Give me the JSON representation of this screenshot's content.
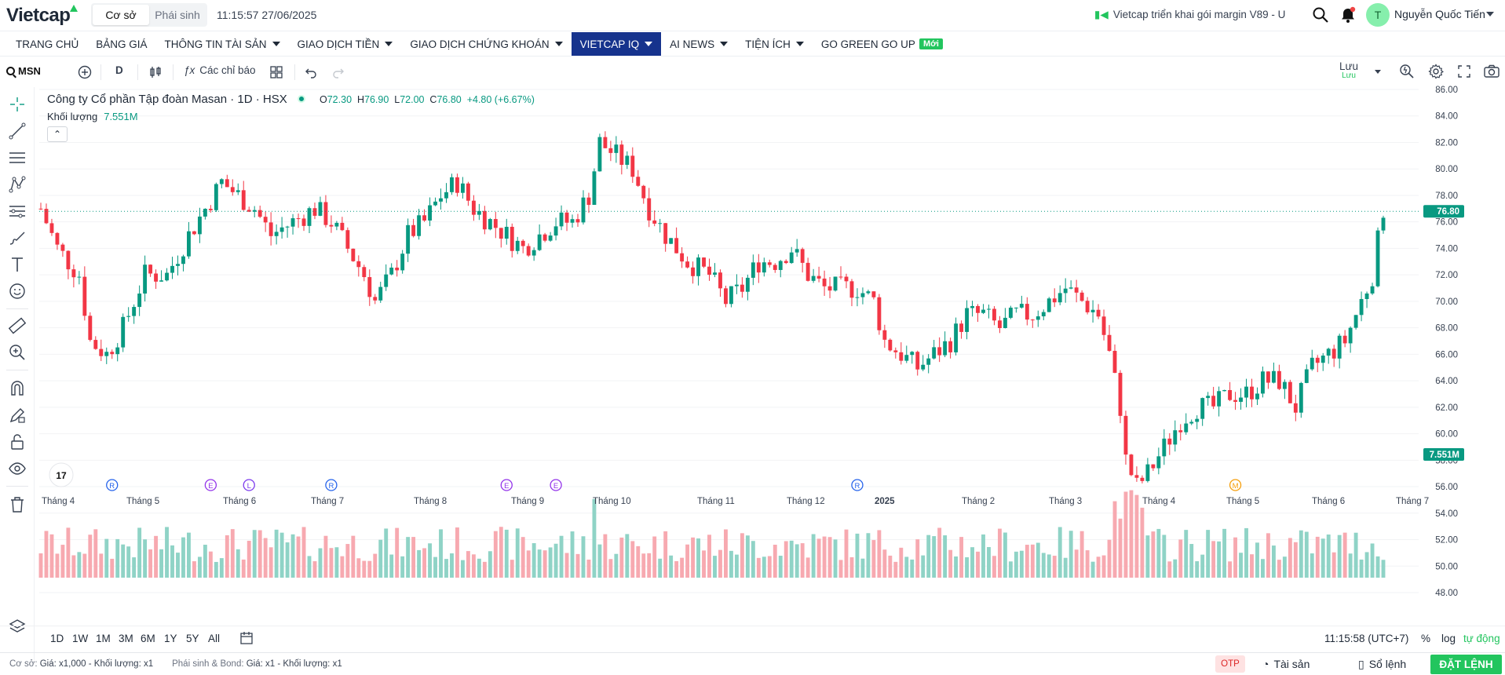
{
  "header": {
    "logo": "Vietcap",
    "segments": [
      "Cơ sở",
      "Phái sinh"
    ],
    "active_segment": 0,
    "clock": "11:15:57 27/06/2025",
    "ticker": "Vietcap triển khai gói margin V89 - U",
    "user_initial": "T",
    "user_name": "Nguyễn Quốc Tiến"
  },
  "nav": [
    {
      "label": "TRANG CHỦ",
      "caret": false
    },
    {
      "label": "BẢNG GIÁ",
      "caret": false
    },
    {
      "label": "THÔNG TIN TÀI SẢN",
      "caret": true
    },
    {
      "label": "GIAO DỊCH TIỀN",
      "caret": true
    },
    {
      "label": "GIAO DỊCH CHỨNG KHOÁN",
      "caret": true
    },
    {
      "label": "VIETCAP IQ",
      "caret": true,
      "active": true
    },
    {
      "label": "AI NEWS",
      "caret": true
    },
    {
      "label": "TIỆN ÍCH",
      "caret": true
    },
    {
      "label": "GO GREEN GO UP",
      "caret": false,
      "badge": "Mới"
    }
  ],
  "toolbar": {
    "symbol": "MSN",
    "interval": "D",
    "indicators": "Các chỉ báo",
    "save": "Lưu",
    "save_sub": "Lưu"
  },
  "legend": {
    "title": "Công ty Cổ phần Tập đoàn Masan · 1D · HSX",
    "open_label": "O",
    "open": "72.30",
    "high_label": "H",
    "high": "76.90",
    "low_label": "L",
    "low": "72.00",
    "close_label": "C",
    "close": "76.80",
    "change": "+4.80 (+6.67%)",
    "volume_label": "Khối lượng",
    "volume": "7.551M"
  },
  "bottom": {
    "ranges": [
      "1D",
      "1W",
      "1M",
      "3M",
      "6M",
      "1Y",
      "5Y",
      "All"
    ],
    "time": "11:15:58 (UTC+7)",
    "pct": "%",
    "log": "log",
    "auto": "tự động"
  },
  "footer": {
    "coso": "Cơ sở:",
    "coso_val": "Giá: x1,000 - Khối lượng: x1",
    "ps": "Phái sinh & Bond:",
    "ps_val": "Giá: x1 - Khối lượng: x1",
    "otp": "OTP",
    "taisan": "Tài sản",
    "solenh": "Sổ lệnh",
    "datlenh": "ĐẶT LỆNH"
  },
  "colors": {
    "up": "#089981",
    "down": "#f23645",
    "vol_up": "#8fd3c6",
    "vol_down": "#f7a9b0",
    "brand_nav": "#16338d",
    "accent": "#22c55e"
  },
  "chart_data": {
    "type": "candlestick",
    "title": "Công ty Cổ phần Tập đoàn Masan · 1D · HSX",
    "y_ticks": [
      "86.00",
      "84.00",
      "82.00",
      "80.00",
      "78.00",
      "76.00",
      "74.00",
      "72.00",
      "70.00",
      "68.00",
      "66.00",
      "64.00",
      "62.00",
      "60.00",
      "58.00",
      "56.00",
      "54.00",
      "52.00",
      "50.00",
      "48.00"
    ],
    "ylim": [
      47.5,
      86.5
    ],
    "last_price": "76.80",
    "last_volume": "7.551M",
    "x_labels": [
      "Tháng 4",
      "Tháng 5",
      "Tháng 6",
      "Tháng 7",
      "Tháng 8",
      "Tháng 9",
      "Tháng 10",
      "Tháng 11",
      "Tháng 12",
      "2025",
      "Tháng 2",
      "Tháng 3",
      "Tháng 4",
      "Tháng 5",
      "Tháng 6",
      "Tháng 7"
    ],
    "trend_points": [
      [
        0,
        77
      ],
      [
        3,
        74
      ],
      [
        7,
        72
      ],
      [
        9,
        67
      ],
      [
        12,
        66
      ],
      [
        15,
        68
      ],
      [
        19,
        72
      ],
      [
        23,
        72
      ],
      [
        27,
        75
      ],
      [
        30,
        77
      ],
      [
        33,
        79
      ],
      [
        36,
        78
      ],
      [
        39,
        77
      ],
      [
        42,
        75
      ],
      [
        46,
        76
      ],
      [
        50,
        77
      ],
      [
        53,
        76
      ],
      [
        56,
        74
      ],
      [
        59,
        72
      ],
      [
        61,
        70
      ],
      [
        64,
        72
      ],
      [
        67,
        75
      ],
      [
        70,
        76
      ],
      [
        73,
        78
      ],
      [
        76,
        79
      ],
      [
        79,
        77
      ],
      [
        82,
        76
      ],
      [
        85,
        75
      ],
      [
        88,
        74
      ],
      [
        91,
        75
      ],
      [
        94,
        76
      ],
      [
        97,
        76
      ],
      [
        100,
        78
      ],
      [
        102,
        82
      ],
      [
        105,
        81
      ],
      [
        108,
        80
      ],
      [
        111,
        77
      ],
      [
        114,
        75
      ],
      [
        118,
        73
      ],
      [
        122,
        72
      ],
      [
        125,
        70
      ],
      [
        128,
        71
      ],
      [
        131,
        73
      ],
      [
        134,
        73
      ],
      [
        137,
        74
      ],
      [
        140,
        72
      ],
      [
        143,
        71
      ],
      [
        146,
        71
      ],
      [
        149,
        71
      ],
      [
        152,
        70
      ],
      [
        154,
        67
      ],
      [
        157,
        66
      ],
      [
        160,
        65
      ],
      [
        163,
        66
      ],
      [
        166,
        67
      ],
      [
        169,
        69
      ],
      [
        172,
        69
      ],
      [
        175,
        68
      ],
      [
        178,
        69
      ],
      [
        181,
        69
      ],
      [
        184,
        70
      ],
      [
        187,
        71
      ],
      [
        190,
        70
      ],
      [
        193,
        69
      ],
      [
        195,
        66
      ],
      [
        197,
        62
      ],
      [
        198,
        58
      ],
      [
        200,
        56
      ],
      [
        202,
        57
      ],
      [
        205,
        59
      ],
      [
        208,
        61
      ],
      [
        211,
        62
      ],
      [
        214,
        62
      ],
      [
        217,
        63
      ],
      [
        220,
        63
      ],
      [
        223,
        64
      ],
      [
        226,
        64
      ],
      [
        229,
        62
      ],
      [
        232,
        65
      ],
      [
        235,
        66
      ],
      [
        238,
        67
      ],
      [
        241,
        70
      ],
      [
        243,
        72
      ],
      [
        245,
        77
      ]
    ],
    "markers": [
      {
        "idx": 13,
        "label": "R"
      },
      {
        "idx": 31,
        "label": "E"
      },
      {
        "idx": 38,
        "label": "L"
      },
      {
        "idx": 53,
        "label": "R"
      },
      {
        "idx": 85,
        "label": "E"
      },
      {
        "idx": 94,
        "label": "E"
      },
      {
        "idx": 149,
        "label": "R"
      },
      {
        "idx": 218,
        "label": "M"
      }
    ]
  }
}
